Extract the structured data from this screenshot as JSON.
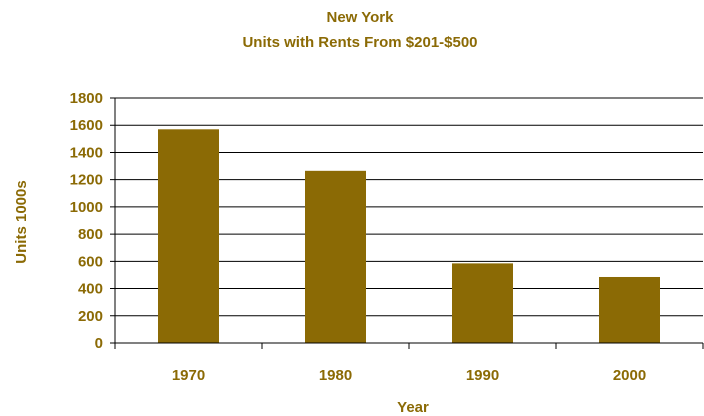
{
  "colors": {
    "bar": "#8B6A05",
    "text": "#8B6A05",
    "grid": "#000000",
    "axis": "#000000"
  },
  "chart_data": {
    "type": "bar",
    "title": "New York",
    "subtitle": "Units with Rents From $201-$500",
    "xlabel": "Year",
    "ylabel": "Units 1000s",
    "categories": [
      "1970",
      "1980",
      "1990",
      "2000"
    ],
    "values": [
      1570,
      1265,
      585,
      485
    ],
    "ylim": [
      0,
      1800
    ],
    "yticks": [
      0,
      200,
      400,
      600,
      800,
      1000,
      1200,
      1400,
      1600,
      1800
    ],
    "ytick_labels": [
      "0",
      "200",
      "400",
      "600",
      "800",
      "1000",
      "1200",
      "1400",
      "1600",
      "1800"
    ],
    "grid": true,
    "legend": "none"
  }
}
